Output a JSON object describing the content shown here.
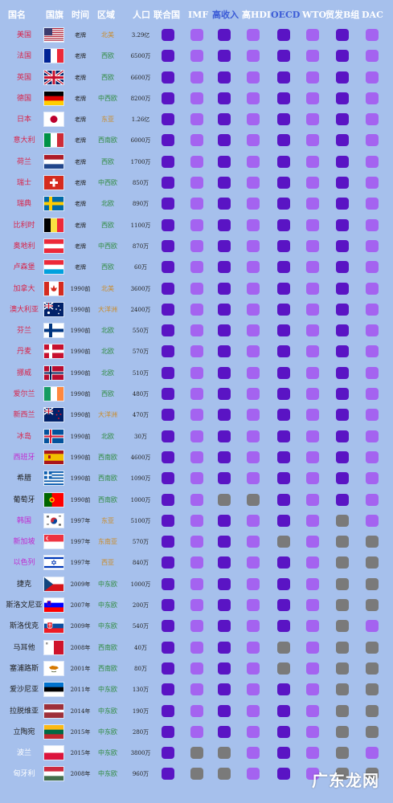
{
  "colors": {
    "background": "#a6c0ec",
    "member_dark": "#5a14c4",
    "member_light": "#a463f0",
    "non_member": "#7a7a7a",
    "header_white": "#ffffff",
    "header_blue": "#3b5bd6",
    "header_red": "#e03a3a"
  },
  "headers": [
    "国名",
    "国旗",
    "时间",
    "区域",
    "人口",
    "联合国",
    "IMF",
    "高收入",
    "高HDI",
    "OECD",
    "WTO",
    "贸发B组",
    "DAC"
  ],
  "rows": [
    {
      "name": "美国",
      "name_color": "#d8244a",
      "flag": "us",
      "time": "老牌",
      "region": "北美",
      "region_color": "#c98b2a",
      "pop": "3.29亿",
      "cells": [
        1,
        2,
        1,
        2,
        1,
        2,
        1,
        2
      ]
    },
    {
      "name": "法国",
      "name_color": "#d8244a",
      "flag": "fr",
      "time": "老牌",
      "region": "西欧",
      "region_color": "#2e8a3e",
      "pop": "6500万",
      "cells": [
        1,
        2,
        1,
        2,
        1,
        2,
        1,
        2
      ]
    },
    {
      "name": "英国",
      "name_color": "#d8244a",
      "flag": "gb",
      "time": "老牌",
      "region": "西欧",
      "region_color": "#2e8a3e",
      "pop": "6600万",
      "cells": [
        1,
        2,
        1,
        2,
        1,
        2,
        1,
        2
      ]
    },
    {
      "name": "德国",
      "name_color": "#d8244a",
      "flag": "de",
      "time": "老牌",
      "region": "中西欧",
      "region_color": "#2e8a3e",
      "pop": "8200万",
      "cells": [
        1,
        2,
        1,
        2,
        1,
        2,
        1,
        2
      ]
    },
    {
      "name": "日本",
      "name_color": "#d8244a",
      "flag": "jp",
      "time": "老牌",
      "region": "东亚",
      "region_color": "#c98b2a",
      "pop": "1.26亿",
      "cells": [
        1,
        2,
        1,
        2,
        1,
        2,
        1,
        2
      ]
    },
    {
      "name": "意大利",
      "name_color": "#d8244a",
      "flag": "it",
      "time": "老牌",
      "region": "西南欧",
      "region_color": "#2e8a3e",
      "pop": "6000万",
      "cells": [
        1,
        2,
        1,
        2,
        1,
        2,
        1,
        2
      ]
    },
    {
      "name": "荷兰",
      "name_color": "#d8244a",
      "flag": "nl",
      "time": "老牌",
      "region": "西欧",
      "region_color": "#2e8a3e",
      "pop": "1700万",
      "cells": [
        1,
        2,
        1,
        2,
        1,
        2,
        1,
        2
      ]
    },
    {
      "name": "瑞士",
      "name_color": "#d8244a",
      "flag": "ch",
      "time": "老牌",
      "region": "中西欧",
      "region_color": "#2e8a3e",
      "pop": "850万",
      "cells": [
        1,
        2,
        1,
        2,
        1,
        2,
        1,
        2
      ]
    },
    {
      "name": "瑞典",
      "name_color": "#d8244a",
      "flag": "se",
      "time": "老牌",
      "region": "北欧",
      "region_color": "#2e8a3e",
      "pop": "890万",
      "cells": [
        1,
        2,
        1,
        2,
        1,
        2,
        1,
        2
      ]
    },
    {
      "name": "比利时",
      "name_color": "#d8244a",
      "flag": "be",
      "time": "老牌",
      "region": "西欧",
      "region_color": "#2e8a3e",
      "pop": "1100万",
      "cells": [
        1,
        2,
        1,
        2,
        1,
        2,
        1,
        2
      ]
    },
    {
      "name": "奥地利",
      "name_color": "#d8244a",
      "flag": "at",
      "time": "老牌",
      "region": "中西欧",
      "region_color": "#2e8a3e",
      "pop": "870万",
      "cells": [
        1,
        2,
        1,
        2,
        1,
        2,
        1,
        2
      ]
    },
    {
      "name": "卢森堡",
      "name_color": "#d8244a",
      "flag": "lu",
      "time": "老牌",
      "region": "西欧",
      "region_color": "#2e8a3e",
      "pop": "60万",
      "cells": [
        1,
        2,
        1,
        2,
        1,
        2,
        1,
        2
      ]
    },
    {
      "name": "加拿大",
      "name_color": "#d8244a",
      "flag": "ca",
      "time": "1990前",
      "region": "北美",
      "region_color": "#c98b2a",
      "pop": "3600万",
      "cells": [
        1,
        2,
        1,
        2,
        1,
        2,
        1,
        2
      ]
    },
    {
      "name": "澳大利亚",
      "name_color": "#d8244a",
      "flag": "au",
      "time": "1990前",
      "region": "大洋洲",
      "region_color": "#c98b2a",
      "pop": "2400万",
      "cells": [
        1,
        2,
        1,
        2,
        1,
        2,
        1,
        2
      ]
    },
    {
      "name": "芬兰",
      "name_color": "#d8244a",
      "flag": "fi",
      "time": "1990前",
      "region": "北欧",
      "region_color": "#2e8a3e",
      "pop": "550万",
      "cells": [
        1,
        2,
        1,
        2,
        1,
        2,
        1,
        2
      ]
    },
    {
      "name": "丹麦",
      "name_color": "#d8244a",
      "flag": "dk",
      "time": "1990前",
      "region": "北欧",
      "region_color": "#2e8a3e",
      "pop": "570万",
      "cells": [
        1,
        2,
        1,
        2,
        1,
        2,
        1,
        2
      ]
    },
    {
      "name": "挪威",
      "name_color": "#d8244a",
      "flag": "no",
      "time": "1990前",
      "region": "北欧",
      "region_color": "#2e8a3e",
      "pop": "510万",
      "cells": [
        1,
        2,
        1,
        2,
        1,
        2,
        1,
        2
      ]
    },
    {
      "name": "爱尔兰",
      "name_color": "#d8244a",
      "flag": "ie",
      "time": "1990前",
      "region": "西欧",
      "region_color": "#2e8a3e",
      "pop": "480万",
      "cells": [
        1,
        2,
        1,
        2,
        1,
        2,
        1,
        2
      ]
    },
    {
      "name": "新西兰",
      "name_color": "#d8244a",
      "flag": "nz",
      "time": "1990前",
      "region": "大洋洲",
      "region_color": "#c98b2a",
      "pop": "470万",
      "cells": [
        1,
        2,
        1,
        2,
        1,
        2,
        1,
        2
      ]
    },
    {
      "name": "冰岛",
      "name_color": "#d8244a",
      "flag": "is",
      "time": "1990前",
      "region": "北欧",
      "region_color": "#2e8a3e",
      "pop": "30万",
      "cells": [
        1,
        2,
        1,
        2,
        1,
        2,
        1,
        2
      ]
    },
    {
      "name": "西班牙",
      "name_color": "#c02ad0",
      "flag": "es",
      "time": "1990前",
      "region": "西南欧",
      "region_color": "#2e8a3e",
      "pop": "4600万",
      "cells": [
        1,
        2,
        1,
        2,
        1,
        2,
        1,
        2
      ]
    },
    {
      "name": "希腊",
      "name_color": "#222222",
      "flag": "gr",
      "time": "1990前",
      "region": "西南欧",
      "region_color": "#2e8a3e",
      "pop": "1090万",
      "cells": [
        1,
        2,
        1,
        2,
        1,
        2,
        1,
        2
      ]
    },
    {
      "name": "葡萄牙",
      "name_color": "#222222",
      "flag": "pt",
      "time": "1990前",
      "region": "西南欧",
      "region_color": "#2e8a3e",
      "pop": "1000万",
      "cells": [
        1,
        2,
        3,
        3,
        1,
        2,
        1,
        2
      ]
    },
    {
      "name": "韩国",
      "name_color": "#c02ad0",
      "flag": "kr",
      "time": "1997年",
      "region": "东亚",
      "region_color": "#c98b2a",
      "pop": "5100万",
      "cells": [
        1,
        2,
        1,
        2,
        1,
        2,
        3,
        2
      ]
    },
    {
      "name": "新加坡",
      "name_color": "#c02ad0",
      "flag": "sg",
      "time": "1997年",
      "region": "东南亚",
      "region_color": "#c98b2a",
      "pop": "570万",
      "cells": [
        1,
        2,
        1,
        2,
        3,
        2,
        3,
        3
      ]
    },
    {
      "name": "以色列",
      "name_color": "#c02ad0",
      "flag": "il",
      "time": "1997年",
      "region": "西亚",
      "region_color": "#c98b2a",
      "pop": "840万",
      "cells": [
        1,
        2,
        1,
        2,
        1,
        2,
        3,
        3
      ]
    },
    {
      "name": "捷克",
      "name_color": "#222222",
      "flag": "cz",
      "time": "2009年",
      "region": "中东欧",
      "region_color": "#2e8a3e",
      "pop": "1000万",
      "cells": [
        1,
        2,
        1,
        2,
        1,
        2,
        3,
        3
      ]
    },
    {
      "name": "斯洛文尼亚",
      "name_color": "#222222",
      "flag": "si",
      "time": "2007年",
      "region": "中东欧",
      "region_color": "#2e8a3e",
      "pop": "200万",
      "cells": [
        1,
        2,
        1,
        2,
        1,
        2,
        3,
        3
      ]
    },
    {
      "name": "斯洛伐克",
      "name_color": "#222222",
      "flag": "sk",
      "time": "2009年",
      "region": "中东欧",
      "region_color": "#2e8a3e",
      "pop": "540万",
      "cells": [
        1,
        2,
        1,
        2,
        1,
        2,
        3,
        2
      ]
    },
    {
      "name": "马耳他",
      "name_color": "#222222",
      "flag": "mt",
      "time": "2008年",
      "region": "西南欧",
      "region_color": "#2e8a3e",
      "pop": "40万",
      "cells": [
        1,
        2,
        1,
        2,
        3,
        2,
        3,
        3
      ]
    },
    {
      "name": "塞浦路斯",
      "name_color": "#222222",
      "flag": "cy",
      "time": "2001年",
      "region": "西南欧",
      "region_color": "#2e8a3e",
      "pop": "80万",
      "cells": [
        1,
        2,
        1,
        2,
        3,
        2,
        3,
        3
      ]
    },
    {
      "name": "爱沙尼亚",
      "name_color": "#222222",
      "flag": "ee",
      "time": "2011年",
      "region": "中东欧",
      "region_color": "#2e8a3e",
      "pop": "130万",
      "cells": [
        1,
        2,
        1,
        2,
        1,
        2,
        3,
        3
      ]
    },
    {
      "name": "拉脱维亚",
      "name_color": "#222222",
      "flag": "lv",
      "time": "2014年",
      "region": "中东欧",
      "region_color": "#2e8a3e",
      "pop": "190万",
      "cells": [
        1,
        2,
        1,
        2,
        1,
        2,
        3,
        3
      ]
    },
    {
      "name": "立陶宛",
      "name_color": "#222222",
      "flag": "lt",
      "time": "2015年",
      "region": "中东欧",
      "region_color": "#2e8a3e",
      "pop": "280万",
      "cells": [
        1,
        2,
        1,
        2,
        1,
        2,
        3,
        3
      ]
    },
    {
      "name": "波兰",
      "name_color": "#ffffff",
      "flag": "pl",
      "time": "2015年",
      "region": "中东欧",
      "region_color": "#2e8a3e",
      "pop": "3800万",
      "cells": [
        1,
        3,
        3,
        2,
        1,
        2,
        3,
        2
      ]
    },
    {
      "name": "匈牙利",
      "name_color": "#ffffff",
      "flag": "hu",
      "time": "2008年",
      "region": "中东欧",
      "region_color": "#2e8a3e",
      "pop": "960万",
      "cells": [
        1,
        3,
        3,
        2,
        1,
        2,
        3,
        3
      ]
    }
  ],
  "watermark": "广东龙网"
}
